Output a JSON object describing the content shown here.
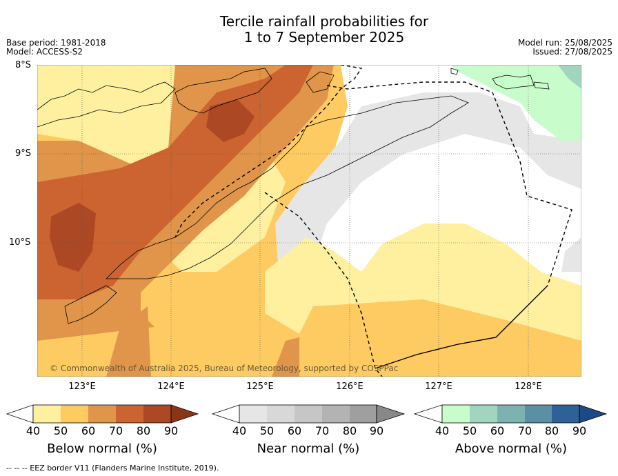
{
  "title_line1": "Tercile rainfall probabilities for",
  "title_line2": "1 to 7 September 2025",
  "meta_left": {
    "base_period": "Base period: 1981-2018",
    "model": "Model: ACCESS-S2"
  },
  "meta_right": {
    "model_run": "Model run: 25/08/2025",
    "issued": "Issued: 27/08/2025"
  },
  "latitudes": [
    "8°S",
    "9°S",
    "10°S"
  ],
  "longitudes": [
    "123°E",
    "124°E",
    "125°E",
    "126°E",
    "127°E",
    "128°E"
  ],
  "copyright": "© Commonwealth of Australia 2025, Bureau of Meteorology, supported by COSPPac",
  "legends": [
    {
      "label": "Below normal (%)",
      "colors": [
        "#fff0a0",
        "#fecb62",
        "#e0954a",
        "#cb6431",
        "#ac4823",
        "#8a3515"
      ],
      "ticks": [
        "40",
        "50",
        "60",
        "70",
        "80",
        "90"
      ]
    },
    {
      "label": "Near normal (%)",
      "colors": [
        "#e6e6e6",
        "#d8d8d8",
        "#c6c6c6",
        "#b3b3b3",
        "#9f9f9f",
        "#888888"
      ],
      "ticks": [
        "40",
        "50",
        "60",
        "70",
        "80",
        "90"
      ]
    },
    {
      "label": "Above normal (%)",
      "colors": [
        "#c8fcca",
        "#a1d5bf",
        "#7db2b0",
        "#5a8fa4",
        "#2e6198",
        "#1d4a84"
      ],
      "ticks": [
        "40",
        "50",
        "60",
        "70",
        "80",
        "90"
      ]
    }
  ],
  "footer": "--  --  -- EEZ border V11 (Flanders Marine Institute, 2019)."
}
